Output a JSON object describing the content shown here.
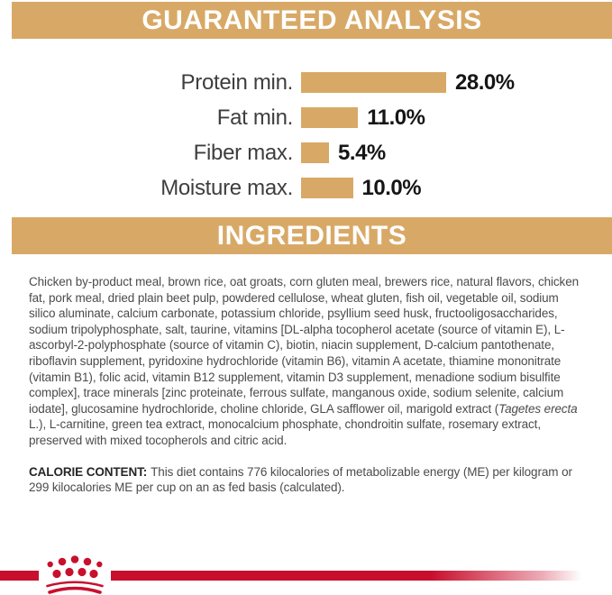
{
  "page": {
    "background": "#ffffff",
    "accent_tan": "#D8A966",
    "brand_red": "#C8102E"
  },
  "sections": {
    "guaranteed_analysis": {
      "title": "GUARANTEED ANALYSIS"
    },
    "ingredients": {
      "title": "INGREDIENTS",
      "text_before_italic": "Chicken by-product meal, brown rice, oat groats, corn gluten meal, brewers rice, natural flavors, chicken fat, pork meal, dried plain beet pulp, powdered cellulose, wheat gluten, fish oil, vegetable oil, sodium silico aluminate, calcium carbonate, potassium chloride, psyllium seed husk, fructooligosaccharides, sodium tripolyphosphate, salt, taurine, vitamins [DL-alpha tocopherol acetate (source of vitamin E), L-ascorbyl-2-polyphosphate (source of vitamin C), biotin, niacin supplement, D-calcium pantothenate, riboflavin supplement, pyridoxine hydrochloride (vitamin B6), vitamin A acetate, thiamine mononitrate (vitamin B1), folic acid, vitamin B12 supplement, vitamin D3 supplement, menadione sodium bisulfite complex], trace minerals [zinc proteinate, ferrous sulfate, manganous oxide, sodium selenite, calcium iodate], glucosamine hydrochloride, choline chloride, GLA safflower oil, marigold extract (",
      "italic_species": "Tagetes erecta",
      "text_after_italic": " L.), L-carnitine, green tea extract, monocalcium phosphate, chondroitin sulfate, rosemary extract, preserved with mixed tocopherols and citric acid."
    },
    "calorie_content": {
      "label": "CALORIE CONTENT:",
      "text": "This diet contains 776 kilocalories of metabolizable energy (ME) per kilogram or 299 kilocalories ME per cup on an as fed basis (calculated)."
    }
  },
  "chart_data": {
    "type": "bar",
    "orientation": "horizontal",
    "title": "GUARANTEED ANALYSIS",
    "categories": [
      "Protein min.",
      "Fat min.",
      "Fiber max.",
      "Moisture max."
    ],
    "values": [
      28.0,
      11.0,
      5.4,
      10.0
    ],
    "value_labels": [
      "28.0%",
      "11.0%",
      "5.4%",
      "10.0%"
    ],
    "unit": "%",
    "xlim": [
      0,
      30
    ],
    "grid": false,
    "legend": false,
    "bar_color": "#D8A966"
  },
  "footer": {
    "logo": "royal-canin-crown"
  }
}
